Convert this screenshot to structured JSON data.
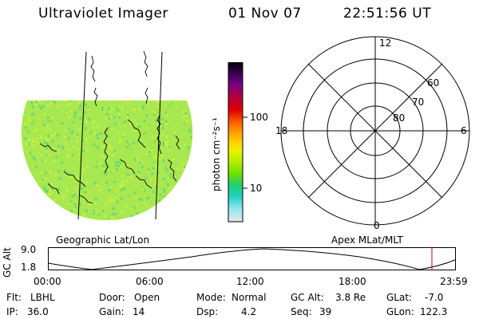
{
  "header": {
    "instrument": "Ultraviolet Imager",
    "date": "01 Nov 07",
    "time": "22:51:56 UT"
  },
  "colorbar": {
    "unit_label": "photon cm⁻²s⁻¹",
    "ticks": [
      {
        "label": "100",
        "value": 100
      },
      {
        "label": "10",
        "value": 10
      }
    ],
    "colors": [
      "#000000",
      "#3a0052",
      "#7a0080",
      "#b3003a",
      "#e00000",
      "#ff6000",
      "#ffa000",
      "#ffd000",
      "#f0f000",
      "#b8f000",
      "#70e000",
      "#20d070",
      "#20d0c0",
      "#90e8f0",
      "#e8e8e8"
    ]
  },
  "geo_panel": {
    "caption": "Geographic Lat/Lon",
    "fill_colors": [
      "#a8e850",
      "#c8f040",
      "#70d870"
    ]
  },
  "polar_panel": {
    "caption": "Apex MLat/MLT",
    "mlt_labels": {
      "top": "12",
      "left": "18",
      "right": "6",
      "bottom": "0"
    },
    "lat_labels": [
      "60",
      "70",
      "80"
    ]
  },
  "altitude_plot": {
    "ylabel": "GC Alt",
    "yticks": [
      "9.0",
      "1.8"
    ],
    "xticks": [
      "00:00",
      "06:00",
      "12:00",
      "18:00",
      "23:59"
    ]
  },
  "status": {
    "row1": [
      {
        "key": "Flt:",
        "value": "LBHL"
      },
      {
        "key": "Door:",
        "value": "Open"
      },
      {
        "key": "Mode:",
        "value": "Normal"
      },
      {
        "key": "GC Alt:",
        "value": "3.8 Re"
      },
      {
        "key": "GLat:",
        "value": "-7.0"
      }
    ],
    "row2": [
      {
        "key": "IP:",
        "value": "36.0"
      },
      {
        "key": "Gain:",
        "value": "14"
      },
      {
        "key": "Dsp:",
        "value": "4.2"
      },
      {
        "key": "Seq:",
        "value": "39"
      },
      {
        "key": "GLon:",
        "value": "122.3"
      }
    ]
  }
}
